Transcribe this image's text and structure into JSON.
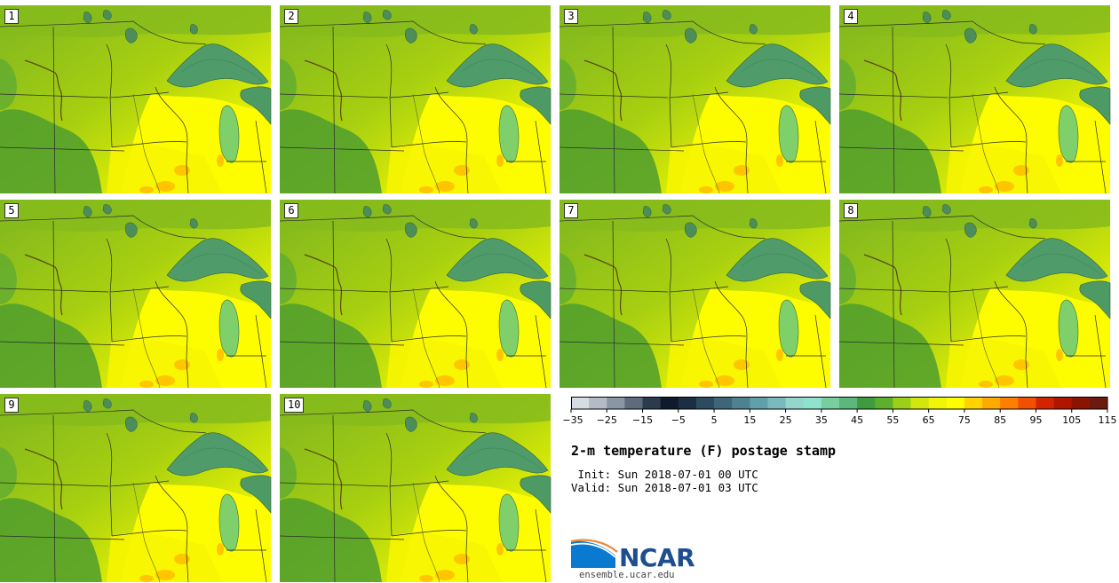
{
  "members": [
    {
      "label": "1"
    },
    {
      "label": "2"
    },
    {
      "label": "3"
    },
    {
      "label": "4"
    },
    {
      "label": "5"
    },
    {
      "label": "6"
    },
    {
      "label": "7"
    },
    {
      "label": "8"
    },
    {
      "label": "9"
    },
    {
      "label": "10"
    }
  ],
  "colorbar": {
    "ticks": [
      "−35",
      "−25",
      "−15",
      "−5",
      "5",
      "15",
      "25",
      "35",
      "45",
      "55",
      "65",
      "75",
      "85",
      "95",
      "105",
      "115"
    ],
    "colors": [
      "#d6dce4",
      "#b3bcc6",
      "#8b96a4",
      "#5f6b7c",
      "#2c3a4e",
      "#0f1a2c",
      "#1c2e44",
      "#2d4b5e",
      "#3d6777",
      "#4f8291",
      "#5fa0aa",
      "#7ab9bd",
      "#92d6cc",
      "#8fe3cc",
      "#79cea0",
      "#5cb77c",
      "#3f9b3e",
      "#5cb02b",
      "#9ccf18",
      "#d2e80d",
      "#f1f507",
      "#fefe00",
      "#ffd400",
      "#ffaa00",
      "#ff7e00",
      "#f05000",
      "#d22400",
      "#b01500",
      "#8b1400",
      "#6b1a0f"
    ]
  },
  "title": "2-m temperature (F) postage stamp",
  "init": " Init: Sun 2018-07-01 00 UTC",
  "valid": "Valid: Sun 2018-07-01 03 UTC",
  "logo": {
    "name": "NCAR",
    "url": "ensemble.ucar.edu"
  }
}
